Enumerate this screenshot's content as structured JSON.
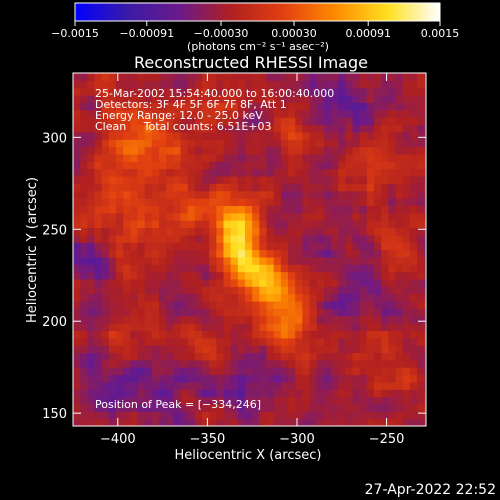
{
  "chart_data": {
    "type": "heatmap",
    "title": "Reconstructed RHESSI Image",
    "xlabel": "Heliocentric X (arcsec)",
    "ylabel": "Heliocentric Y (arcsec)",
    "xlim": [
      -425,
      -228
    ],
    "ylim": [
      143,
      335
    ],
    "xticks": [
      -400,
      -350,
      -300,
      -250
    ],
    "xtick_labels": [
      "−400",
      "−350",
      "−300",
      "−250"
    ],
    "yticks": [
      150,
      200,
      250,
      300
    ],
    "ytick_labels": [
      "150",
      "200",
      "250",
      "300"
    ],
    "colorbar": {
      "range": [
        -0.0015,
        0.0015
      ],
      "ticks": [
        -0.0015,
        -0.00091,
        -0.0003,
        0.0003,
        0.00091,
        0.0015
      ],
      "tick_labels": [
        "−0.0015",
        "−0.00091",
        "−0.00030",
        "0.00030",
        "0.00091",
        "0.0015"
      ],
      "units": "(photons cm⁻² s⁻¹ asec⁻²)",
      "colors": [
        "#0000ff",
        "#3a1aa8",
        "#6a1a8a",
        "#b02020",
        "#e24010",
        "#ff8c00",
        "#ffe020",
        "#ffffff"
      ]
    },
    "annotations": [
      "25-Mar-2002 15:54:40.000 to 16:00:40.000",
      "Detectors: 3F 4F 5F 6F 7F 8F, Att 1",
      "Energy Range: 12.0 - 25.0 keV",
      "Clean     Total counts: 6.51E+03"
    ],
    "peak_label": "Position of Peak = [−334,246]",
    "peak": [
      -334,
      246
    ],
    "sources": [
      {
        "x": -333,
        "y": 246,
        "sx": 9,
        "sy": 17,
        "amp": 0.00155
      },
      {
        "x": -318,
        "y": 222,
        "sx": 9,
        "sy": 10,
        "amp": 0.00085
      },
      {
        "x": -306,
        "y": 204,
        "sx": 11,
        "sy": 13,
        "amp": 0.00095
      },
      {
        "x": -356,
        "y": 262,
        "sx": 12,
        "sy": 9,
        "amp": 0.00045
      },
      {
        "x": -395,
        "y": 270,
        "sx": 18,
        "sy": 30,
        "amp": 0.0005
      },
      {
        "x": -380,
        "y": 300,
        "sx": 14,
        "sy": 12,
        "amp": 0.00045
      },
      {
        "x": -350,
        "y": 318,
        "sx": 10,
        "sy": 8,
        "amp": 0.0004
      },
      {
        "x": -300,
        "y": 300,
        "sx": 14,
        "sy": 10,
        "amp": 0.00035
      },
      {
        "x": -255,
        "y": 290,
        "sx": 12,
        "sy": 16,
        "amp": 0.00035
      },
      {
        "x": -248,
        "y": 240,
        "sx": 10,
        "sy": 12,
        "amp": 0.0003
      },
      {
        "x": -260,
        "y": 180,
        "sx": 10,
        "sy": 10,
        "amp": 0.0003
      },
      {
        "x": -350,
        "y": 190,
        "sx": 10,
        "sy": 9,
        "amp": 0.0003
      },
      {
        "x": -395,
        "y": 195,
        "sx": 12,
        "sy": 12,
        "amp": 0.00025
      },
      {
        "x": -240,
        "y": 170,
        "sx": 7,
        "sy": 7,
        "amp": 0.00035
      },
      {
        "x": -400,
        "y": 165,
        "sx": 10,
        "sy": 8,
        "amp": -0.0005
      },
      {
        "x": -330,
        "y": 165,
        "sx": 14,
        "sy": 8,
        "amp": -0.0004
      },
      {
        "x": -270,
        "y": 315,
        "sx": 14,
        "sy": 10,
        "amp": -0.00035
      },
      {
        "x": -410,
        "y": 225,
        "sx": 8,
        "sy": 14,
        "amp": -0.0003
      },
      {
        "x": -265,
        "y": 215,
        "sx": 8,
        "sy": 10,
        "amp": -0.0003
      }
    ]
  },
  "timestamp": "27-Apr-2022 22:52"
}
